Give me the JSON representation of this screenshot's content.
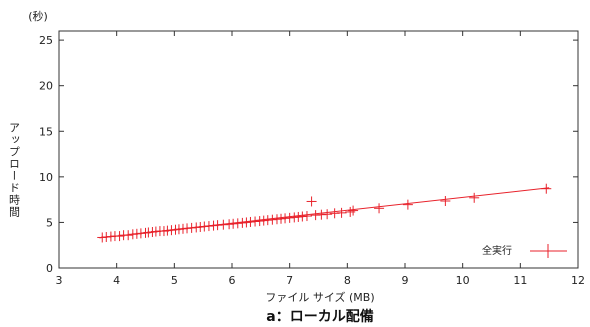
{
  "chart_data": {
    "type": "scatter",
    "title": "",
    "caption": "a：ローカル配備",
    "xlabel": "ファイル サイズ (MB)",
    "ylabel": "アップロード時間",
    "y_unit": "(秒)",
    "xlim": [
      3,
      12
    ],
    "ylim": [
      0,
      26
    ],
    "xticks": [
      3,
      4,
      5,
      6,
      7,
      8,
      9,
      10,
      11,
      12
    ],
    "yticks": [
      0,
      5,
      10,
      15,
      20,
      25
    ],
    "grid": false,
    "legend": "bottom-right",
    "series_color": "#e8222b",
    "series": [
      {
        "name": "全実行",
        "fit_line": [
          [
            3.7,
            3.3
          ],
          [
            11.5,
            8.8
          ]
        ],
        "points": [
          [
            3.75,
            3.35
          ],
          [
            3.82,
            3.4
          ],
          [
            3.9,
            3.45
          ],
          [
            3.97,
            3.5
          ],
          [
            4.05,
            3.5
          ],
          [
            4.12,
            3.6
          ],
          [
            4.2,
            3.6
          ],
          [
            4.28,
            3.7
          ],
          [
            4.35,
            3.75
          ],
          [
            4.42,
            3.8
          ],
          [
            4.5,
            3.85
          ],
          [
            4.55,
            3.9
          ],
          [
            4.62,
            3.95
          ],
          [
            4.68,
            4.0
          ],
          [
            4.75,
            4.05
          ],
          [
            4.82,
            4.05
          ],
          [
            4.88,
            4.1
          ],
          [
            4.95,
            4.15
          ],
          [
            5.02,
            4.2
          ],
          [
            5.08,
            4.25
          ],
          [
            5.15,
            4.3
          ],
          [
            5.22,
            4.35
          ],
          [
            5.3,
            4.4
          ],
          [
            5.38,
            4.45
          ],
          [
            5.45,
            4.5
          ],
          [
            5.52,
            4.55
          ],
          [
            5.6,
            4.6
          ],
          [
            5.68,
            4.65
          ],
          [
            5.75,
            4.7
          ],
          [
            5.85,
            4.75
          ],
          [
            5.95,
            4.8
          ],
          [
            6.02,
            4.85
          ],
          [
            6.1,
            4.9
          ],
          [
            6.18,
            4.95
          ],
          [
            6.25,
            5.0
          ],
          [
            6.32,
            5.05
          ],
          [
            6.4,
            5.1
          ],
          [
            6.48,
            5.15
          ],
          [
            6.55,
            5.2
          ],
          [
            6.62,
            5.25
          ],
          [
            6.7,
            5.3
          ],
          [
            6.78,
            5.35
          ],
          [
            6.85,
            5.4
          ],
          [
            6.92,
            5.45
          ],
          [
            7.0,
            5.5
          ],
          [
            7.08,
            5.55
          ],
          [
            7.15,
            5.6
          ],
          [
            7.22,
            5.65
          ],
          [
            7.3,
            5.7
          ],
          [
            7.38,
            7.3
          ],
          [
            7.45,
            5.8
          ],
          [
            7.55,
            5.85
          ],
          [
            7.65,
            5.9
          ],
          [
            7.78,
            6.0
          ],
          [
            7.9,
            6.05
          ],
          [
            8.05,
            6.15
          ],
          [
            8.1,
            6.3
          ],
          [
            8.55,
            6.55
          ],
          [
            9.05,
            6.95
          ],
          [
            9.7,
            7.35
          ],
          [
            10.2,
            7.7
          ],
          [
            11.45,
            8.7
          ]
        ]
      }
    ]
  }
}
